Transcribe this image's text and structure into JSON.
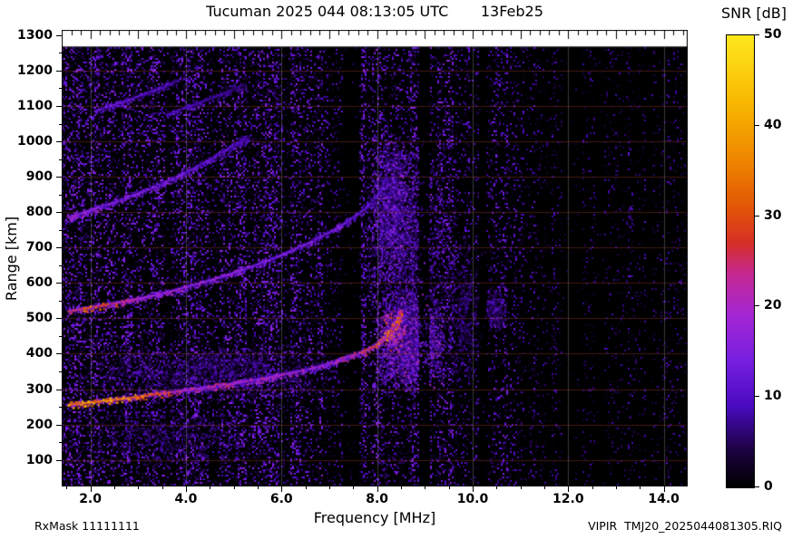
{
  "header": {
    "title": "Tucuman 2025 044 08:13:05 UTC       13Feb25"
  },
  "colorbar": {
    "title": "SNR [dB]",
    "tick_labels": [
      "0",
      "10",
      "20",
      "30",
      "40",
      "50"
    ]
  },
  "footer": {
    "left": "RxMask 11111111",
    "right": "VIPIR  TMJ20_2025044081305.RIQ"
  },
  "chart_data": {
    "type": "heatmap",
    "title": "Tucuman 2025 044 08:13:05 UTC",
    "date_label": "13Feb25",
    "station": "Tucuman",
    "xlabel": "Frequency [MHz]",
    "ylabel": "Range [km]",
    "colorbar_label": "SNR [dB]",
    "xlim": [
      1.4,
      14.5
    ],
    "ylim": [
      25,
      1315
    ],
    "data_top_range": 1268,
    "xticks": [
      2.0,
      4.0,
      6.0,
      8.0,
      10.0,
      12.0,
      14.0
    ],
    "xtick_labels": [
      "2.0",
      "4.0",
      "6.0",
      "8.0",
      "10.0",
      "12.0",
      "14.0"
    ],
    "xtick_minor_step": 0.5,
    "top_tick_step": 0.2,
    "yticks": [
      100,
      200,
      300,
      400,
      500,
      600,
      700,
      800,
      900,
      1000,
      1100,
      1200,
      1300
    ],
    "ytick_minor_step": 50,
    "clim": [
      0,
      50
    ],
    "cticks": [
      0,
      10,
      20,
      30,
      40,
      50
    ],
    "palette": [
      [
        0.0,
        "#000000"
      ],
      [
        0.08,
        "#1c0240"
      ],
      [
        0.18,
        "#4a0ac0"
      ],
      [
        0.28,
        "#7820e0"
      ],
      [
        0.38,
        "#a426d4"
      ],
      [
        0.47,
        "#c42894"
      ],
      [
        0.54,
        "#d63028"
      ],
      [
        0.62,
        "#e25606"
      ],
      [
        0.72,
        "#ee8400"
      ],
      [
        0.84,
        "#f7b300"
      ],
      [
        1.0,
        "#ffe81c"
      ]
    ],
    "grid": {
      "h_color": "rgba(160,62,46,0.40)",
      "v_color": "rgba(185,185,185,0.30)"
    },
    "noise": {
      "cell": 2,
      "base_prob": 0.4,
      "max_db": 13
    },
    "dark_bands": [
      [
        7.28,
        7.62
      ],
      [
        8.85,
        9.08
      ],
      [
        10.12,
        10.28
      ],
      [
        11.88,
        12.28
      ],
      [
        12.55,
        12.72
      ],
      [
        13.62,
        13.74
      ]
    ],
    "blobs": [
      {
        "name": "spread-f-core",
        "f": [
          7.9,
          9.45
        ],
        "r": [
          290,
          580
        ],
        "n": 2600,
        "snr": [
          6,
          22
        ],
        "pow": 2.2
      },
      {
        "name": "spread-f-hot",
        "f": [
          8.05,
          8.6
        ],
        "r": [
          400,
          530
        ],
        "n": 240,
        "snr": [
          18,
          34
        ],
        "pow": 2.5
      },
      {
        "name": "spread-f-halo",
        "f": [
          7.65,
          9.7
        ],
        "r": [
          300,
          1060
        ],
        "n": 2000,
        "snr": [
          4,
          16
        ],
        "pow": 2.4
      },
      {
        "name": "second-hop-spread",
        "f": [
          7.85,
          8.75
        ],
        "r": [
          600,
          1030
        ],
        "n": 1400,
        "snr": [
          5,
          18
        ],
        "pow": 2.3
      },
      {
        "name": "lowleft-cloud",
        "f": [
          1.7,
          7.5
        ],
        "r": [
          265,
          430
        ],
        "n": 1700,
        "snr": [
          3,
          13
        ],
        "pow": 2.4
      },
      {
        "name": "bottomleft-cloud",
        "f": [
          1.7,
          5.5
        ],
        "r": [
          80,
          255
        ],
        "n": 600,
        "snr": [
          3,
          10
        ],
        "pow": 2.6
      },
      {
        "name": "fade-cloud",
        "f": [
          9.45,
          10.15
        ],
        "r": [
          300,
          720
        ],
        "n": 450,
        "snr": [
          3,
          10
        ],
        "pow": 2.5
      },
      {
        "name": "patch-10mhz",
        "f": [
          10.22,
          10.72
        ],
        "r": [
          460,
          590
        ],
        "n": 260,
        "snr": [
          4,
          13
        ],
        "pow": 2.0
      }
    ],
    "traces": [
      {
        "name": "f-trace-1st-hop",
        "speckle": 650,
        "points": [
          [
            1.55,
            256,
            34
          ],
          [
            2.0,
            262,
            36
          ],
          [
            2.5,
            270,
            36
          ],
          [
            3.0,
            278,
            33
          ],
          [
            3.5,
            288,
            26
          ],
          [
            4.0,
            297,
            22
          ],
          [
            4.5,
            306,
            20
          ],
          [
            5.0,
            316,
            20
          ],
          [
            5.5,
            327,
            19
          ],
          [
            6.0,
            340,
            19
          ],
          [
            6.5,
            354,
            18
          ],
          [
            7.0,
            372,
            18
          ],
          [
            7.35,
            388,
            20
          ],
          [
            7.7,
            404,
            24
          ],
          [
            7.95,
            422,
            28
          ],
          [
            8.15,
            444,
            30
          ],
          [
            8.3,
            468,
            30
          ],
          [
            8.42,
            495,
            28
          ],
          [
            8.5,
            522,
            24
          ]
        ]
      },
      {
        "name": "f-trace-2nd-hop",
        "speckle": 480,
        "points": [
          [
            1.55,
            520,
            30
          ],
          [
            2.0,
            530,
            29
          ],
          [
            2.5,
            542,
            25
          ],
          [
            3.0,
            555,
            20
          ],
          [
            3.5,
            570,
            18
          ],
          [
            4.0,
            588,
            17
          ],
          [
            4.5,
            607,
            16
          ],
          [
            5.0,
            628,
            16
          ],
          [
            5.5,
            652,
            15
          ],
          [
            6.0,
            678,
            15
          ],
          [
            6.5,
            708,
            14
          ],
          [
            7.0,
            742,
            14
          ],
          [
            7.4,
            775,
            13
          ],
          [
            7.8,
            815,
            12
          ],
          [
            8.05,
            855,
            11
          ],
          [
            8.2,
            895,
            9
          ]
        ]
      },
      {
        "name": "f-trace-3rd-hop",
        "speckle": 360,
        "points": [
          [
            1.55,
            785,
            18
          ],
          [
            2.0,
            805,
            17
          ],
          [
            2.5,
            828,
            16
          ],
          [
            3.0,
            852,
            15
          ],
          [
            3.5,
            880,
            14
          ],
          [
            4.0,
            912,
            13
          ],
          [
            4.5,
            948,
            12
          ],
          [
            5.0,
            988,
            10
          ],
          [
            5.3,
            1012,
            8
          ]
        ]
      },
      {
        "name": "f-trace-4th-hop-a",
        "speckle": 130,
        "points": [
          [
            2.1,
            1085,
            12
          ],
          [
            2.7,
            1112,
            12
          ],
          [
            3.3,
            1142,
            10
          ],
          [
            3.8,
            1170,
            8
          ]
        ]
      },
      {
        "name": "f-trace-4th-hop-b",
        "speckle": 110,
        "points": [
          [
            3.6,
            1075,
            10
          ],
          [
            4.2,
            1105,
            9
          ],
          [
            4.8,
            1135,
            8
          ],
          [
            5.2,
            1160,
            6
          ]
        ]
      }
    ]
  }
}
